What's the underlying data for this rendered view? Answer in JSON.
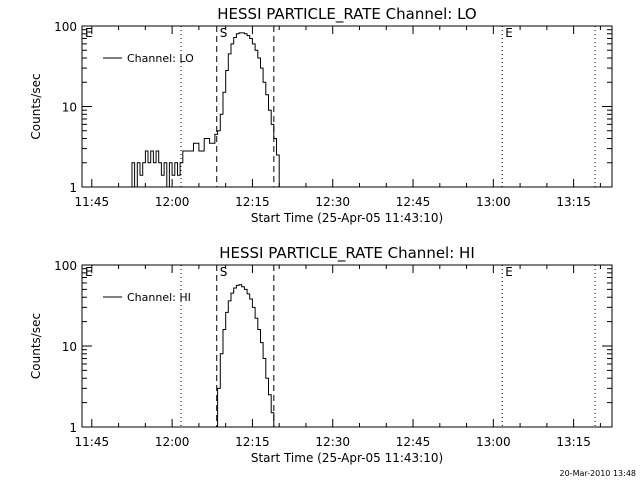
{
  "footer": {
    "timestamp": "20-Mar-2010 13:48"
  },
  "chart_data": [
    {
      "type": "line",
      "title": "HESSI PARTICLE_RATE Channel: LO",
      "xlabel": "Start Time (25-Apr-05 11:43:10)",
      "ylabel": "Counts/sec",
      "yscale": "log",
      "xlim": [
        "11:43:10",
        "13:22:10"
      ],
      "ylim": [
        1,
        100
      ],
      "x_ticks": [
        "11:45",
        "12:00",
        "12:15",
        "12:30",
        "12:45",
        "13:00",
        "13:15"
      ],
      "y_ticks": [
        "1",
        "10",
        "100"
      ],
      "legend": {
        "position": "top-left",
        "entries": [
          "Channel: LO"
        ]
      },
      "series": [
        {
          "name": "Channel: LO",
          "points": [
            [
              "11:52:00",
              1
            ],
            [
              "11:52:30",
              2
            ],
            [
              "11:53:00",
              1
            ],
            [
              "11:53:30",
              2
            ],
            [
              "11:54:00",
              1.4
            ],
            [
              "11:54:30",
              2
            ],
            [
              "11:55:00",
              2.8
            ],
            [
              "11:55:30",
              2
            ],
            [
              "11:56:00",
              2.8
            ],
            [
              "11:56:30",
              2
            ],
            [
              "11:57:00",
              2.8
            ],
            [
              "11:57:30",
              2
            ],
            [
              "11:58:00",
              1.4
            ],
            [
              "11:58:30",
              2
            ],
            [
              "11:59:00",
              1
            ],
            [
              "11:59:30",
              2
            ],
            [
              "12:00:00",
              1.4
            ],
            [
              "12:00:30",
              2
            ],
            [
              "12:01:00",
              1.4
            ],
            [
              "12:01:30",
              2
            ],
            [
              "12:02:00",
              2.8
            ],
            [
              "12:03:00",
              2.8
            ],
            [
              "12:04:00",
              3.5
            ],
            [
              "12:05:00",
              2.8
            ],
            [
              "12:06:00",
              4
            ],
            [
              "12:07:00",
              3.5
            ],
            [
              "12:08:00",
              4.5
            ],
            [
              "12:08:30",
              5
            ],
            [
              "12:09:00",
              8
            ],
            [
              "12:09:30",
              15
            ],
            [
              "12:10:00",
              28
            ],
            [
              "12:10:30",
              45
            ],
            [
              "12:11:00",
              60
            ],
            [
              "12:11:30",
              72
            ],
            [
              "12:12:00",
              80
            ],
            [
              "12:12:30",
              82
            ],
            [
              "12:13:00",
              82
            ],
            [
              "12:13:30",
              80
            ],
            [
              "12:14:00",
              76
            ],
            [
              "12:14:30",
              70
            ],
            [
              "12:15:00",
              60
            ],
            [
              "12:15:30",
              50
            ],
            [
              "12:16:00",
              40
            ],
            [
              "12:16:30",
              30
            ],
            [
              "12:17:00",
              20
            ],
            [
              "12:17:30",
              14
            ],
            [
              "12:18:00",
              9
            ],
            [
              "12:18:30",
              6
            ],
            [
              "12:19:00",
              4
            ],
            [
              "12:19:30",
              2.5
            ],
            [
              "12:20:00",
              1
            ]
          ]
        }
      ],
      "markers": [
        {
          "label": "E",
          "time": "11:43:10",
          "style": "dotted"
        },
        {
          "label": "",
          "time": "12:01:40",
          "style": "dotted"
        },
        {
          "label": "S",
          "time": "12:08:20",
          "style": "dashed"
        },
        {
          "label": "",
          "time": "12:19:00",
          "style": "dashed"
        },
        {
          "label": "E",
          "time": "13:01:40",
          "style": "dotted"
        },
        {
          "label": "",
          "time": "13:19:00",
          "style": "dotted"
        }
      ]
    },
    {
      "type": "line",
      "title": "HESSI PARTICLE_RATE Channel: HI",
      "xlabel": "Start Time (25-Apr-05 11:43:10)",
      "ylabel": "Counts/sec",
      "yscale": "log",
      "xlim": [
        "11:43:10",
        "13:22:10"
      ],
      "ylim": [
        1,
        100
      ],
      "x_ticks": [
        "11:45",
        "12:00",
        "12:15",
        "12:30",
        "12:45",
        "13:00",
        "13:15"
      ],
      "y_ticks": [
        "1",
        "10",
        "100"
      ],
      "legend": {
        "position": "top-left",
        "entries": [
          "Channel: HI"
        ]
      },
      "series": [
        {
          "name": "Channel: HI",
          "points": [
            [
              "12:08:00",
              1
            ],
            [
              "12:08:30",
              3
            ],
            [
              "12:09:00",
              8
            ],
            [
              "12:09:30",
              16
            ],
            [
              "12:10:00",
              26
            ],
            [
              "12:10:30",
              36
            ],
            [
              "12:11:00",
              45
            ],
            [
              "12:11:30",
              52
            ],
            [
              "12:12:00",
              56
            ],
            [
              "12:12:30",
              57
            ],
            [
              "12:13:00",
              54
            ],
            [
              "12:13:30",
              50
            ],
            [
              "12:14:00",
              44
            ],
            [
              "12:14:30",
              38
            ],
            [
              "12:15:00",
              30
            ],
            [
              "12:15:30",
              22
            ],
            [
              "12:16:00",
              16
            ],
            [
              "12:16:30",
              11
            ],
            [
              "12:17:00",
              7
            ],
            [
              "12:17:30",
              4
            ],
            [
              "12:18:00",
              2.5
            ],
            [
              "12:18:30",
              1.5
            ],
            [
              "12:19:00",
              1
            ]
          ]
        }
      ],
      "markers": [
        {
          "label": "E",
          "time": "11:43:10",
          "style": "dotted"
        },
        {
          "label": "",
          "time": "12:01:40",
          "style": "dotted"
        },
        {
          "label": "S",
          "time": "12:08:20",
          "style": "dashed"
        },
        {
          "label": "",
          "time": "12:19:00",
          "style": "dashed"
        },
        {
          "label": "E",
          "time": "13:01:40",
          "style": "dotted"
        },
        {
          "label": "",
          "time": "13:19:00",
          "style": "dotted"
        }
      ]
    }
  ]
}
